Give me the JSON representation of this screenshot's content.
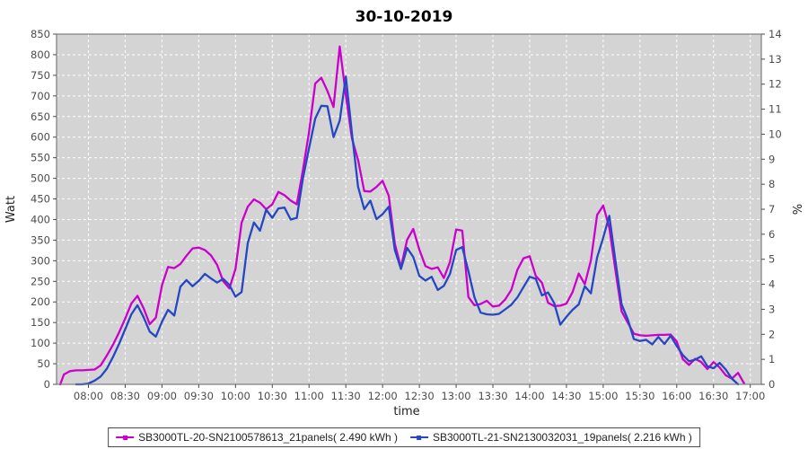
{
  "title": "30-10-2019",
  "chart_data": {
    "type": "line",
    "title": "30-10-2019",
    "xlabel": "time",
    "ylabel": "Watt",
    "ylabel_right": "%",
    "grid": true,
    "legend_position": "bottom",
    "plot_background": "#d4d4d4",
    "grid_color": "#ffffff",
    "border_color": "#7d7d7d",
    "x_axis": {
      "start": "07:34",
      "end": "17:09",
      "ticks": [
        "08:00",
        "08:30",
        "09:00",
        "09:30",
        "10:00",
        "10:30",
        "11:00",
        "11:30",
        "12:00",
        "12:30",
        "13:00",
        "13:30",
        "14:00",
        "14:30",
        "15:00",
        "15:30",
        "16:00",
        "16:30",
        "17:00"
      ]
    },
    "y_axis_left": {
      "min": 0,
      "max": 850,
      "step": 50
    },
    "y_axis_right": {
      "min": 0,
      "max": 14,
      "step": 1
    },
    "series": [
      {
        "name": "SB3000TL-20-SN2100578613_21panels( 2.490 kWh )",
        "color": "#cc00cc",
        "energy_kwh": 2.49,
        "points": [
          [
            "07:37",
            0
          ],
          [
            "07:40",
            24
          ],
          [
            "07:45",
            32
          ],
          [
            "07:50",
            34
          ],
          [
            "07:55",
            34
          ],
          [
            "08:00",
            35
          ],
          [
            "08:05",
            36
          ],
          [
            "08:10",
            46
          ],
          [
            "08:15",
            70
          ],
          [
            "08:20",
            96
          ],
          [
            "08:25",
            126
          ],
          [
            "08:30",
            160
          ],
          [
            "08:35",
            196
          ],
          [
            "08:40",
            215
          ],
          [
            "08:45",
            185
          ],
          [
            "08:50",
            146
          ],
          [
            "08:55",
            162
          ],
          [
            "09:00",
            240
          ],
          [
            "09:05",
            285
          ],
          [
            "09:10",
            282
          ],
          [
            "09:15",
            292
          ],
          [
            "09:20",
            312
          ],
          [
            "09:25",
            330
          ],
          [
            "09:30",
            332
          ],
          [
            "09:35",
            326
          ],
          [
            "09:40",
            313
          ],
          [
            "09:45",
            290
          ],
          [
            "09:50",
            250
          ],
          [
            "09:55",
            233
          ],
          [
            "10:00",
            280
          ],
          [
            "10:05",
            392
          ],
          [
            "10:10",
            431
          ],
          [
            "10:15",
            449
          ],
          [
            "10:20",
            441
          ],
          [
            "10:25",
            425
          ],
          [
            "10:30",
            437
          ],
          [
            "10:35",
            467
          ],
          [
            "10:40",
            459
          ],
          [
            "10:45",
            446
          ],
          [
            "10:50",
            437
          ],
          [
            "10:55",
            520
          ],
          [
            "11:00",
            612
          ],
          [
            "11:05",
            730
          ],
          [
            "11:10",
            744
          ],
          [
            "11:15",
            712
          ],
          [
            "11:20",
            673
          ],
          [
            "11:25",
            820
          ],
          [
            "11:30",
            702
          ],
          [
            "11:35",
            597
          ],
          [
            "11:40",
            545
          ],
          [
            "11:45",
            469
          ],
          [
            "11:50",
            468
          ],
          [
            "11:55",
            479
          ],
          [
            "12:00",
            494
          ],
          [
            "12:05",
            458
          ],
          [
            "12:10",
            341
          ],
          [
            "12:15",
            284
          ],
          [
            "12:20",
            351
          ],
          [
            "12:25",
            377
          ],
          [
            "12:30",
            327
          ],
          [
            "12:35",
            287
          ],
          [
            "12:40",
            280
          ],
          [
            "12:45",
            284
          ],
          [
            "12:50",
            258
          ],
          [
            "12:55",
            297
          ],
          [
            "13:00",
            376
          ],
          [
            "13:05",
            373
          ],
          [
            "13:10",
            212
          ],
          [
            "13:15",
            192
          ],
          [
            "13:20",
            195
          ],
          [
            "13:25",
            203
          ],
          [
            "13:30",
            189
          ],
          [
            "13:35",
            191
          ],
          [
            "13:40",
            206
          ],
          [
            "13:45",
            229
          ],
          [
            "13:50",
            278
          ],
          [
            "13:55",
            306
          ],
          [
            "14:00",
            311
          ],
          [
            "14:05",
            263
          ],
          [
            "14:10",
            247
          ],
          [
            "14:15",
            198
          ],
          [
            "14:20",
            190
          ],
          [
            "14:25",
            191
          ],
          [
            "14:30",
            196
          ],
          [
            "14:35",
            224
          ],
          [
            "14:40",
            269
          ],
          [
            "14:45",
            243
          ],
          [
            "14:50",
            301
          ],
          [
            "14:55",
            411
          ],
          [
            "15:00",
            434
          ],
          [
            "15:05",
            380
          ],
          [
            "15:10",
            277
          ],
          [
            "15:15",
            177
          ],
          [
            "15:20",
            150
          ],
          [
            "15:25",
            123
          ],
          [
            "15:30",
            119
          ],
          [
            "15:35",
            118
          ],
          [
            "15:40",
            119
          ],
          [
            "15:45",
            120
          ],
          [
            "15:50",
            120
          ],
          [
            "15:55",
            121
          ],
          [
            "16:00",
            104
          ],
          [
            "16:05",
            61
          ],
          [
            "16:10",
            47
          ],
          [
            "16:15",
            62
          ],
          [
            "16:20",
            54
          ],
          [
            "16:25",
            37
          ],
          [
            "16:30",
            54
          ],
          [
            "16:35",
            41
          ],
          [
            "16:40",
            22
          ],
          [
            "16:45",
            14
          ],
          [
            "16:50",
            28
          ],
          [
            "16:55",
            2
          ]
        ]
      },
      {
        "name": "SB3000TL-21-SN2130032031_19panels( 2.216 kWh )",
        "color": "#2547c4",
        "energy_kwh": 2.216,
        "points": [
          [
            "07:50",
            0
          ],
          [
            "07:55",
            0
          ],
          [
            "08:00",
            2
          ],
          [
            "08:05",
            9
          ],
          [
            "08:10",
            19
          ],
          [
            "08:15",
            38
          ],
          [
            "08:20",
            66
          ],
          [
            "08:25",
            98
          ],
          [
            "08:30",
            134
          ],
          [
            "08:35",
            170
          ],
          [
            "08:40",
            192
          ],
          [
            "08:45",
            163
          ],
          [
            "08:50",
            128
          ],
          [
            "08:55",
            116
          ],
          [
            "09:00",
            152
          ],
          [
            "09:05",
            181
          ],
          [
            "09:10",
            167
          ],
          [
            "09:15",
            237
          ],
          [
            "09:20",
            253
          ],
          [
            "09:25",
            238
          ],
          [
            "09:30",
            251
          ],
          [
            "09:35",
            268
          ],
          [
            "09:40",
            257
          ],
          [
            "09:45",
            247
          ],
          [
            "09:50",
            256
          ],
          [
            "09:55",
            241
          ],
          [
            "10:00",
            213
          ],
          [
            "10:05",
            224
          ],
          [
            "10:10",
            343
          ],
          [
            "10:15",
            393
          ],
          [
            "10:20",
            373
          ],
          [
            "10:25",
            424
          ],
          [
            "10:30",
            404
          ],
          [
            "10:35",
            427
          ],
          [
            "10:40",
            429
          ],
          [
            "10:45",
            400
          ],
          [
            "10:50",
            404
          ],
          [
            "10:55",
            500
          ],
          [
            "11:00",
            573
          ],
          [
            "11:05",
            645
          ],
          [
            "11:10",
            676
          ],
          [
            "11:15",
            675
          ],
          [
            "11:20",
            600
          ],
          [
            "11:25",
            640
          ],
          [
            "11:30",
            747
          ],
          [
            "11:35",
            610
          ],
          [
            "11:40",
            480
          ],
          [
            "11:45",
            425
          ],
          [
            "11:50",
            446
          ],
          [
            "11:55",
            401
          ],
          [
            "12:00",
            413
          ],
          [
            "12:05",
            431
          ],
          [
            "12:10",
            326
          ],
          [
            "12:15",
            280
          ],
          [
            "12:20",
            331
          ],
          [
            "12:25",
            309
          ],
          [
            "12:30",
            263
          ],
          [
            "12:35",
            252
          ],
          [
            "12:40",
            261
          ],
          [
            "12:45",
            229
          ],
          [
            "12:50",
            239
          ],
          [
            "12:55",
            268
          ],
          [
            "13:00",
            326
          ],
          [
            "13:05",
            333
          ],
          [
            "13:10",
            275
          ],
          [
            "13:15",
            211
          ],
          [
            "13:20",
            174
          ],
          [
            "13:25",
            170
          ],
          [
            "13:30",
            169
          ],
          [
            "13:35",
            171
          ],
          [
            "13:40",
            182
          ],
          [
            "13:45",
            193
          ],
          [
            "13:50",
            211
          ],
          [
            "13:55",
            236
          ],
          [
            "14:00",
            261
          ],
          [
            "14:05",
            256
          ],
          [
            "14:10",
            216
          ],
          [
            "14:15",
            223
          ],
          [
            "14:20",
            197
          ],
          [
            "14:25",
            145
          ],
          [
            "14:30",
            164
          ],
          [
            "14:35",
            181
          ],
          [
            "14:40",
            194
          ],
          [
            "14:45",
            238
          ],
          [
            "14:50",
            221
          ],
          [
            "14:55",
            308
          ],
          [
            "15:00",
            356
          ],
          [
            "15:05",
            409
          ],
          [
            "15:10",
            300
          ],
          [
            "15:15",
            194
          ],
          [
            "15:20",
            158
          ],
          [
            "15:25",
            110
          ],
          [
            "15:30",
            105
          ],
          [
            "15:35",
            108
          ],
          [
            "15:40",
            97
          ],
          [
            "15:45",
            115
          ],
          [
            "15:50",
            98
          ],
          [
            "15:55",
            118
          ],
          [
            "16:00",
            93
          ],
          [
            "16:05",
            71
          ],
          [
            "16:10",
            56
          ],
          [
            "16:15",
            60
          ],
          [
            "16:20",
            68
          ],
          [
            "16:25",
            44
          ],
          [
            "16:30",
            39
          ],
          [
            "16:35",
            52
          ],
          [
            "16:40",
            36
          ],
          [
            "16:45",
            14
          ],
          [
            "16:50",
            0
          ]
        ]
      }
    ]
  },
  "legend": {
    "items": [
      {
        "label": "SB3000TL-20-SN2100578613_21panels( 2.490 kWh )",
        "color": "#cc00cc"
      },
      {
        "label": "SB3000TL-21-SN2130032031_19panels( 2.216 kWh )",
        "color": "#2547c4"
      }
    ]
  }
}
